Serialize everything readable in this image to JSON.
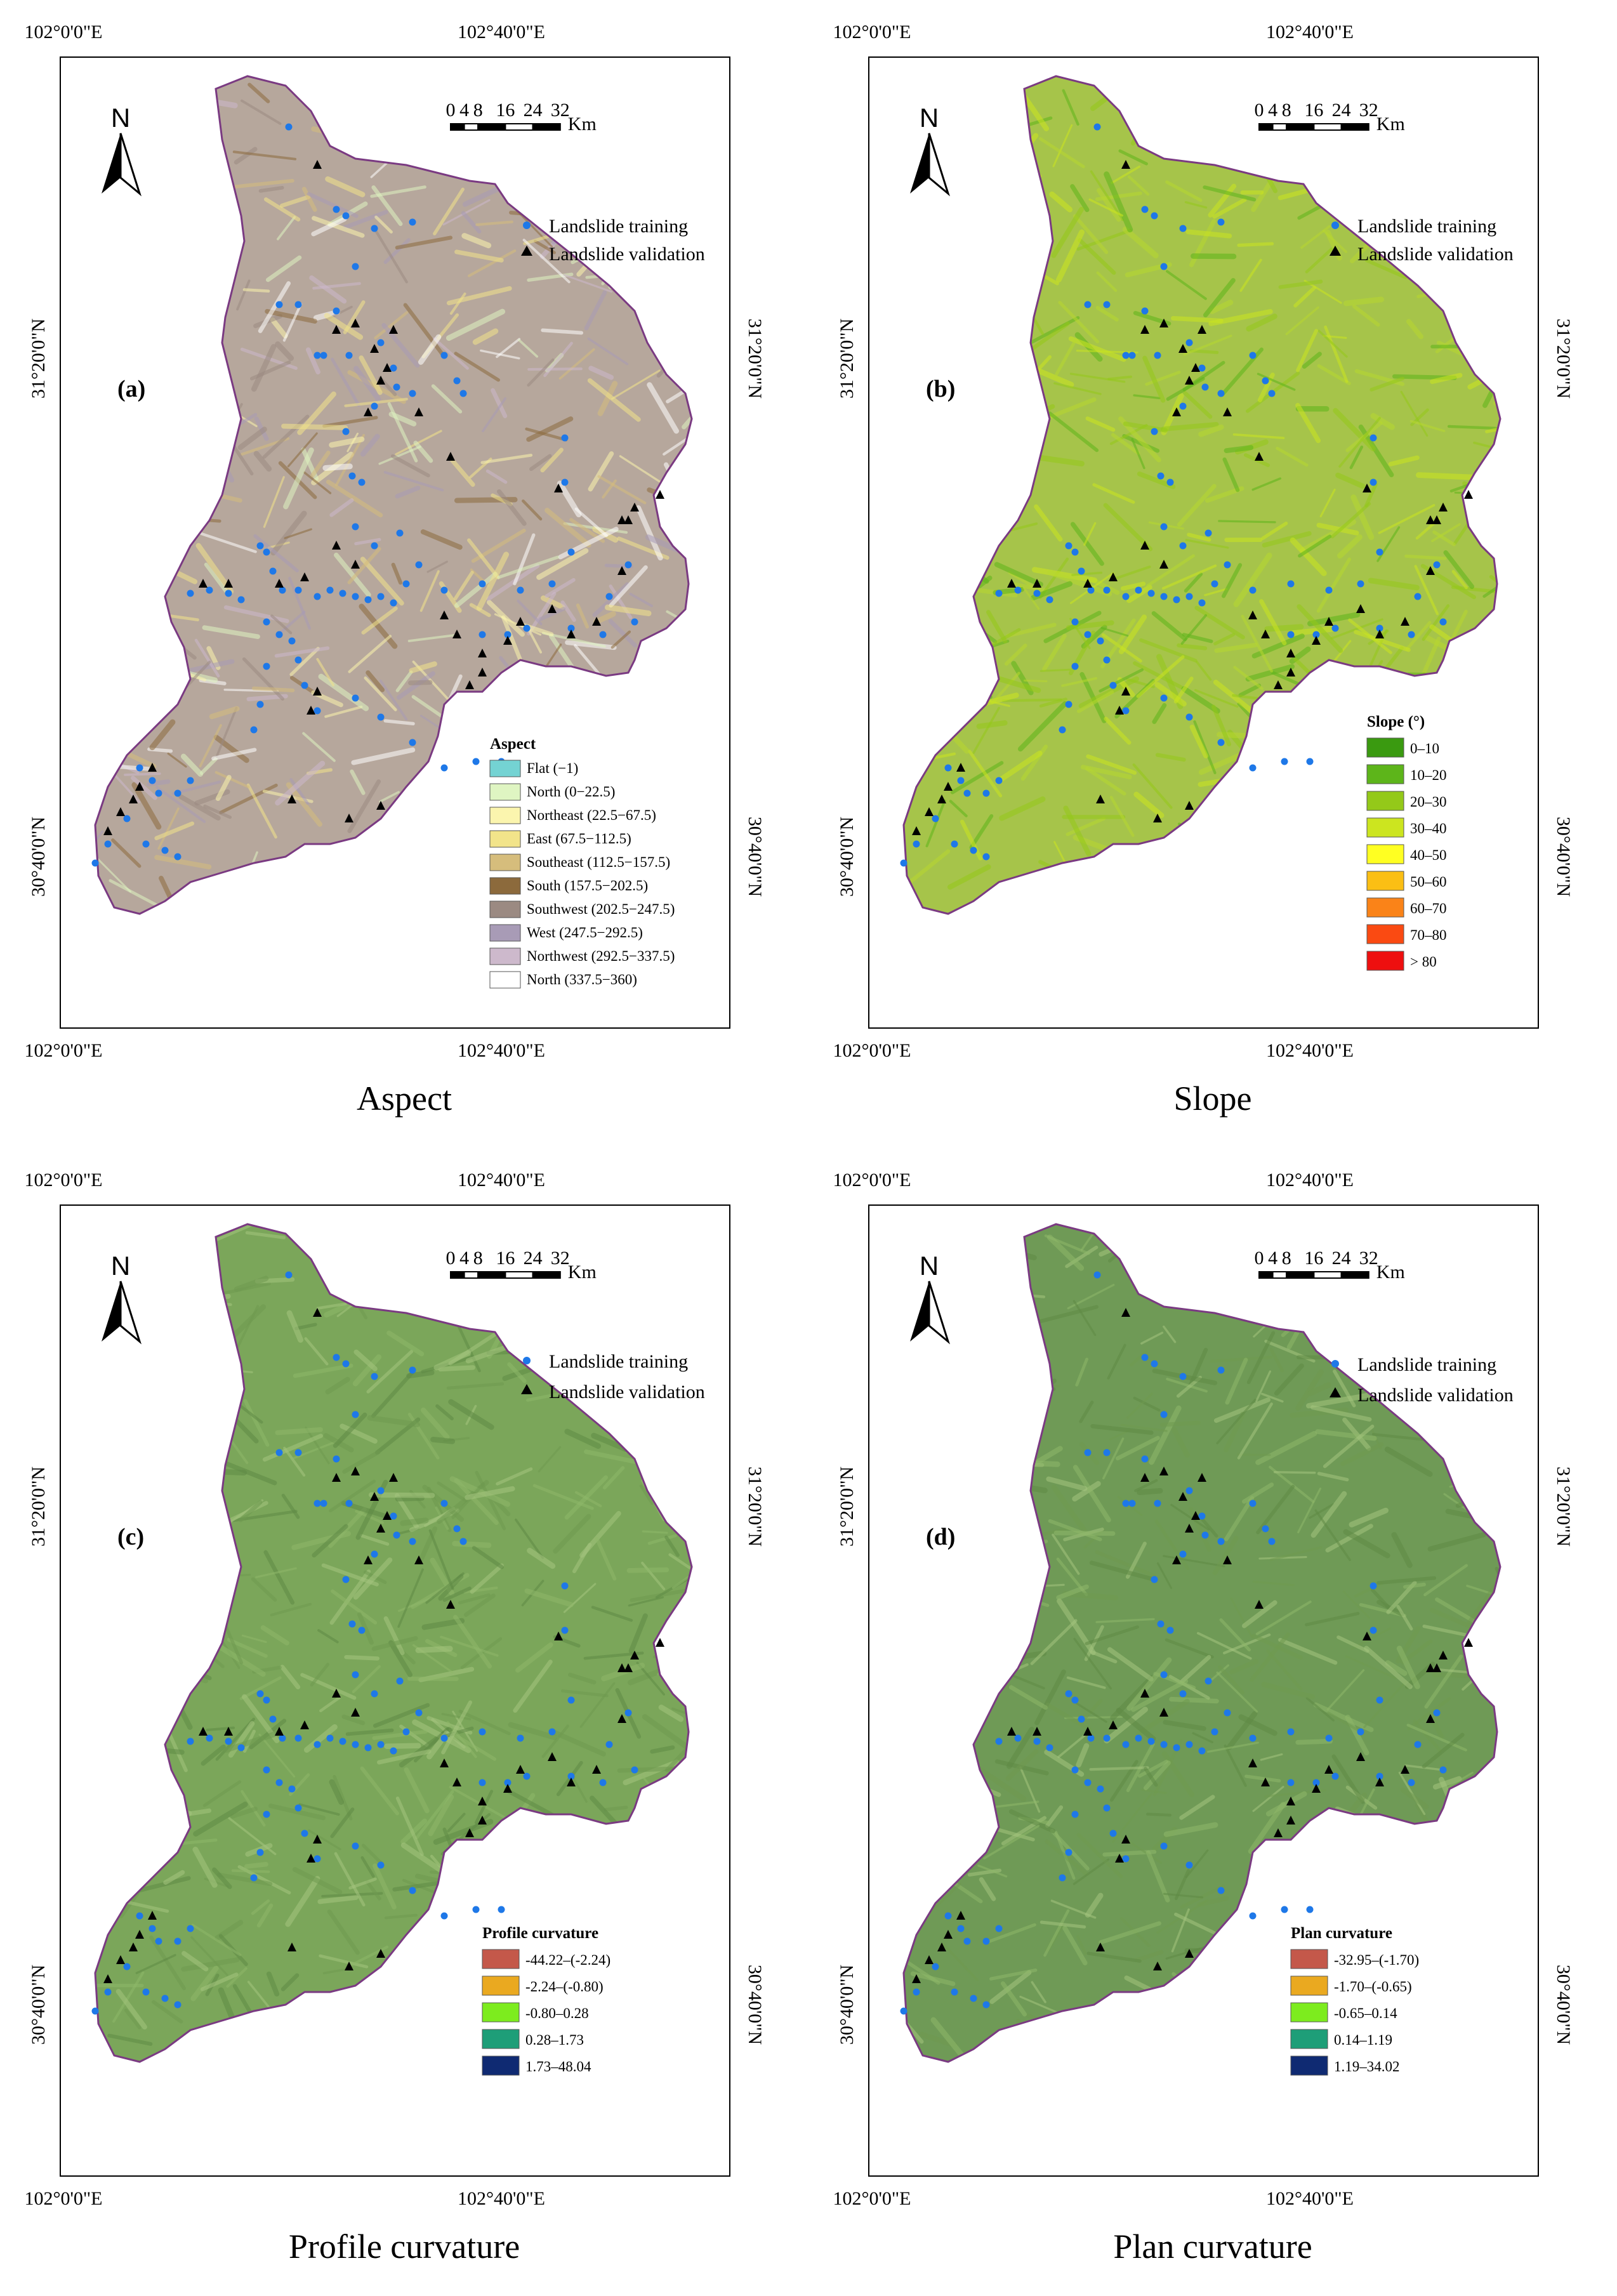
{
  "tick_labels": {
    "lon_left": "102°0'0\"E",
    "lon_right": "102°40'0\"E",
    "lat_top": "31°20'0\"N",
    "lat_bottom": "30°40'0\"N"
  },
  "north_arrow": "N",
  "scale_bar": {
    "ticks": [
      "0",
      "4",
      "8",
      "16",
      "24",
      "32"
    ],
    "unit": "Km"
  },
  "point_legend": {
    "training": "Landslide training",
    "validation": "Landslide validation"
  },
  "colors": {
    "training_dot": "#1e78e8",
    "validation_tri": "#000000",
    "boundary": "#7a3a82",
    "aspect_base": "#b6a79c",
    "slope_base": "#a6c44a",
    "profile_base": "#7ba65a",
    "plan_base": "#6f9a56"
  },
  "panels": [
    {
      "id": "a",
      "letter": "(a)",
      "caption": "Aspect",
      "base_color": "#b6a79c",
      "legend": {
        "title": "Aspect",
        "items": [
          {
            "label": "Flat (−1)",
            "color": "#74d3d3"
          },
          {
            "label": "North (0−22.5)",
            "color": "#dff5c2"
          },
          {
            "label": "Northeast (22.5−67.5)",
            "color": "#fbf5ae"
          },
          {
            "label": "East (67.5−112.5)",
            "color": "#f2e48a"
          },
          {
            "label": "Southeast (112.5−157.5)",
            "color": "#d6bd7c"
          },
          {
            "label": "South (157.5−202.5)",
            "color": "#8c6a3c"
          },
          {
            "label": "Southwest (202.5−247.5)",
            "color": "#9b8a82"
          },
          {
            "label": "West (247.5−292.5)",
            "color": "#a89bb6"
          },
          {
            "label": "Northwest (292.5−337.5)",
            "color": "#cdb9cc"
          },
          {
            "label": "North (337.5−360)",
            "color": "#ffffff"
          }
        ]
      }
    },
    {
      "id": "b",
      "letter": "(b)",
      "caption": "Slope",
      "base_color": "#a6c44a",
      "legend": {
        "title": "Slope (°)",
        "items": [
          {
            "label": "0–10",
            "color": "#3a9a10"
          },
          {
            "label": "10–20",
            "color": "#5db51a"
          },
          {
            "label": "20–30",
            "color": "#94c919"
          },
          {
            "label": "30–40",
            "color": "#cce51f"
          },
          {
            "label": "40–50",
            "color": "#ffff22"
          },
          {
            "label": "50–60",
            "color": "#fbbf14"
          },
          {
            "label": "60–70",
            "color": "#fa8318"
          },
          {
            "label": "70–80",
            "color": "#fa4a12"
          },
          {
            "label": "> 80",
            "color": "#ee0f0f"
          }
        ]
      }
    },
    {
      "id": "c",
      "letter": "(c)",
      "caption": "Profile curvature",
      "base_color": "#7ba65a",
      "legend": {
        "title": "Profile curvature",
        "items": [
          {
            "label": "-44.22–(-2.24)",
            "color": "#c4584a"
          },
          {
            "label": "-2.24–(-0.80)",
            "color": "#eaa920"
          },
          {
            "label": "-0.80–0.28",
            "color": "#7dec1e"
          },
          {
            "label": "0.28–1.73",
            "color": "#1e9e78"
          },
          {
            "label": "1.73–48.04",
            "color": "#0f2a72"
          }
        ]
      }
    },
    {
      "id": "d",
      "letter": "(d)",
      "caption": "Plan curvature",
      "base_color": "#6f9a56",
      "legend": {
        "title": "Plan curvature",
        "items": [
          {
            "label": "-32.95–(-1.70)",
            "color": "#c4584a"
          },
          {
            "label": "-1.70–(-0.65)",
            "color": "#eaa920"
          },
          {
            "label": "-0.65–0.14",
            "color": "#7dec1e"
          },
          {
            "label": "0.14–1.19",
            "color": "#1e9e78"
          },
          {
            "label": "1.19–34.02",
            "color": "#0f2a72"
          }
        ]
      }
    }
  ]
}
